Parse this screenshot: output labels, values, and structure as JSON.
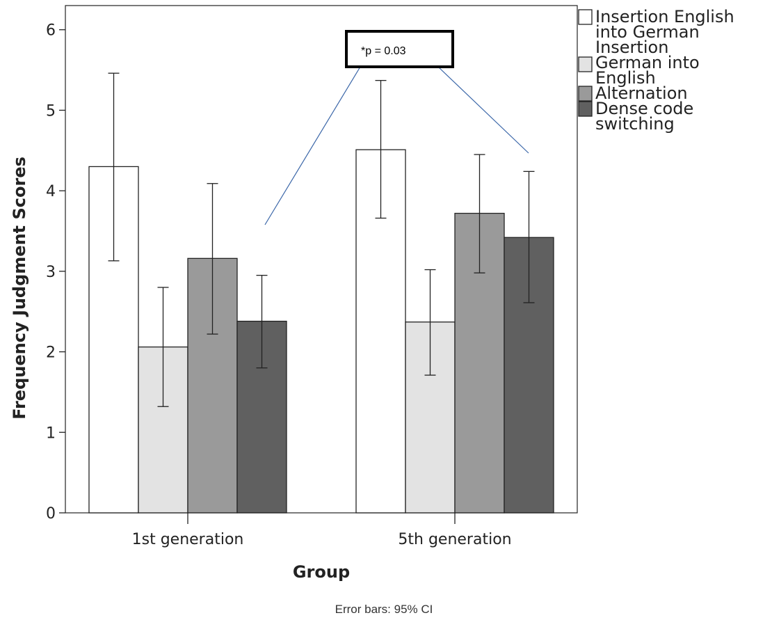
{
  "chart_data": {
    "type": "bar",
    "categories": [
      "1st generation",
      "5th generation"
    ],
    "xlabel": "Group",
    "ylabel": "Frequency Judgment Scores",
    "ylim": [
      0,
      6.3
    ],
    "yticks": [
      0,
      1,
      2,
      3,
      4,
      5,
      6
    ],
    "grid": false,
    "legend_position": "right",
    "series": [
      {
        "name": "Insertion English into German",
        "color": "#ffffff",
        "values": [
          4.3,
          4.51
        ],
        "ci_low": [
          3.13,
          3.66
        ],
        "ci_high": [
          5.46,
          5.37
        ]
      },
      {
        "name": "Insertion German into English",
        "color": "#e3e3e3",
        "values": [
          2.06,
          2.37
        ],
        "ci_low": [
          1.32,
          1.71
        ],
        "ci_high": [
          2.8,
          3.02
        ]
      },
      {
        "name": "Alternation",
        "color": "#9a9a9a",
        "values": [
          3.16,
          3.72
        ],
        "ci_low": [
          2.22,
          2.98
        ],
        "ci_high": [
          4.09,
          4.45
        ]
      },
      {
        "name": "Dense code switching",
        "color": "#606060",
        "values": [
          2.38,
          3.42
        ],
        "ci_low": [
          1.8,
          2.61
        ],
        "ci_high": [
          2.95,
          4.24
        ]
      }
    ],
    "annotation": {
      "text": "*p = 0.03"
    },
    "note": "Error bars: 95% CI"
  }
}
